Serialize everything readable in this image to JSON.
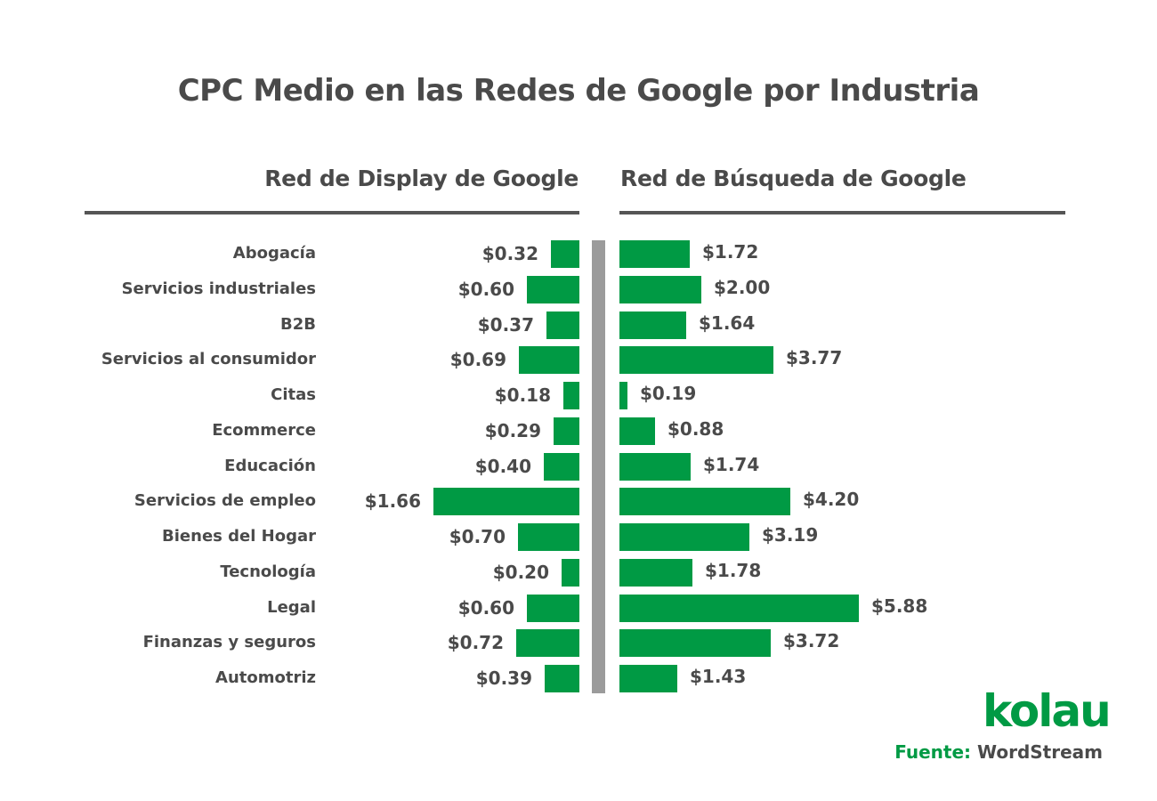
{
  "chart_data": {
    "type": "bar",
    "title": "CPC Medio en las Redes de Google por Industria",
    "orientation": "horizontal-butterfly",
    "categories": [
      "Abogacía",
      "Servicios industriales",
      "B2B",
      "Servicios al consumidor",
      "Citas",
      "Ecommerce",
      "Educación",
      "Servicios de empleo",
      "Bienes del Hogar",
      "Tecnología",
      "Legal",
      "Finanzas y seguros",
      "Automotriz"
    ],
    "series": [
      {
        "name": "Red de Display de Google",
        "values": [
          0.32,
          0.6,
          0.37,
          0.69,
          0.18,
          0.29,
          0.4,
          1.66,
          0.7,
          0.2,
          0.6,
          0.72,
          0.39
        ],
        "labels": [
          "$0.32",
          "$0.60",
          "$0.37",
          "$0.69",
          "$0.18",
          "$0.29",
          "$0.40",
          "$1.66",
          "$0.70",
          "$0.20",
          "$0.60",
          "$0.72",
          "$0.39"
        ],
        "color": "#009a44"
      },
      {
        "name": "Red de Búsqueda de Google",
        "values": [
          1.72,
          2.0,
          1.64,
          3.77,
          0.19,
          0.88,
          1.74,
          4.2,
          3.19,
          1.78,
          5.88,
          3.72,
          1.43
        ],
        "labels": [
          "$1.72",
          "$2.00",
          "$1.64",
          "$3.77",
          "$0.19",
          "$0.88",
          "$1.74",
          "$4.20",
          "$3.19",
          "$1.78",
          "$5.88",
          "$3.72",
          "$1.43"
        ],
        "color": "#009a44"
      }
    ],
    "xlabel": "",
    "ylabel": "",
    "grid": false,
    "legend": "column headers above each side"
  },
  "header": {
    "title": "CPC Medio en las Redes de Google por Industria",
    "left_subtitle": "Red de Display de Google",
    "right_subtitle": "Red de Búsqueda de Google"
  },
  "footer": {
    "logo_text": "kolau",
    "source_key": "Fuente:",
    "source_value": "WordStream"
  },
  "colors": {
    "bar": "#009a44",
    "text": "#4a4a4a",
    "divider": "#9b9b9b"
  }
}
